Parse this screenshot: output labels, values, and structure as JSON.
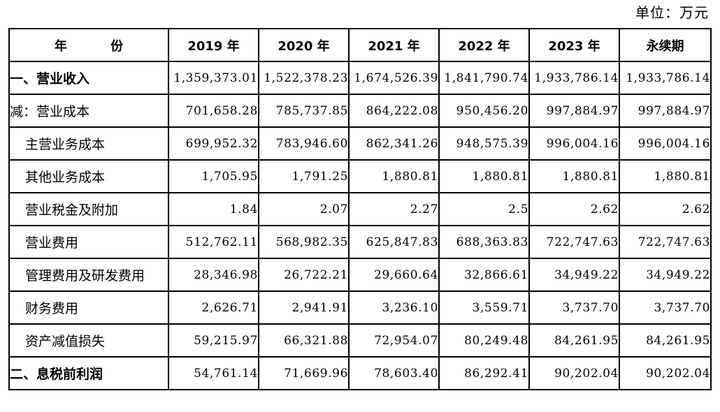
{
  "unit_note": "单位：万元",
  "table": {
    "header": {
      "label": "年 份",
      "columns": [
        "2019 年",
        "2020 年",
        "2021 年",
        "2022 年",
        "2023 年",
        "永续期"
      ]
    },
    "rows": [
      {
        "label": "一、营业收入",
        "level": 0,
        "values": [
          "1,359,373.01",
          "1,522,378.23",
          "1,674,526.39",
          "1,841,790.74",
          "1,933,786.14",
          "1,933,786.14"
        ]
      },
      {
        "label": "减：营业成本",
        "level": 1,
        "values": [
          "701,658.28",
          "785,737.85",
          "864,222.08",
          "950,456.20",
          "997,884.97",
          "997,884.97"
        ]
      },
      {
        "label": "主营业务成本",
        "level": 2,
        "values": [
          "699,952.32",
          "783,946.60",
          "862,341.26",
          "948,575.39",
          "996,004.16",
          "996,004.16"
        ]
      },
      {
        "label": "其他业务成本",
        "level": 2,
        "values": [
          "1,705.95",
          "1,791.25",
          "1,880.81",
          "1,880.81",
          "1,880.81",
          "1,880.81"
        ]
      },
      {
        "label": "营业税金及附加",
        "level": 2,
        "values": [
          "1.84",
          "2.07",
          "2.27",
          "2.5",
          "2.62",
          "2.62"
        ]
      },
      {
        "label": "营业费用",
        "level": 2,
        "values": [
          "512,762.11",
          "568,982.35",
          "625,847.83",
          "688,363.83",
          "722,747.63",
          "722,747.63"
        ]
      },
      {
        "label": "管理费用及研发费用",
        "level": 2,
        "values": [
          "28,346.98",
          "26,722.21",
          "29,660.64",
          "32,866.61",
          "34,949.22",
          "34,949.22"
        ]
      },
      {
        "label": "财务费用",
        "level": 2,
        "values": [
          "2,626.71",
          "2,941.91",
          "3,236.10",
          "3,559.71",
          "3,737.70",
          "3,737.70"
        ]
      },
      {
        "label": "资产减值损失",
        "level": 2,
        "values": [
          "59,215.97",
          "66,321.88",
          "72,954.07",
          "80,249.48",
          "84,261.95",
          "84,261.95"
        ]
      },
      {
        "label": "二、息税前利润",
        "level": 0,
        "values": [
          "54,761.14",
          "71,669.96",
          "78,603.40",
          "86,292.41",
          "90,202.04",
          "90,202.04"
        ]
      }
    ]
  }
}
